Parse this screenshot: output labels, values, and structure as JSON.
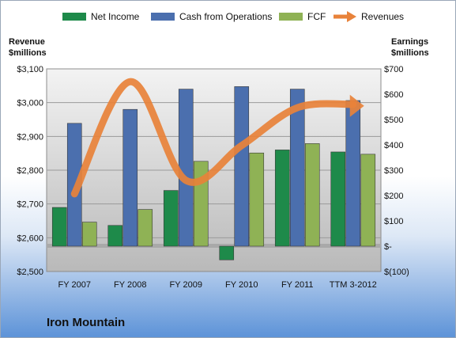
{
  "company": "Iron Mountain",
  "left_axis_title_line1": "Revenue",
  "left_axis_title_line2": "$millions",
  "right_axis_title_line1": "Earnings",
  "right_axis_title_line2": "$millions",
  "legend": [
    {
      "label": "Net Income",
      "color": "#1e8a4a",
      "kind": "bar"
    },
    {
      "label": "Cash from Operations",
      "color": "#4b6fae",
      "kind": "bar"
    },
    {
      "label": "FCF",
      "color": "#8fb255",
      "kind": "bar"
    },
    {
      "label": "Revenues",
      "color": "#e8823a",
      "kind": "arrow"
    }
  ],
  "chart_data": {
    "type": "bar",
    "categories": [
      "FY 2007",
      "FY 2008",
      "FY 2009",
      "FY 2010",
      "FY 2011",
      "TTM 3-2012"
    ],
    "series": [
      {
        "name": "Net Income",
        "axis": "right",
        "values": [
          153,
          82,
          220,
          -54,
          380,
          372
        ],
        "color": "#1e8a4a"
      },
      {
        "name": "Cash from Operations",
        "axis": "right",
        "values": [
          485,
          540,
          620,
          630,
          620,
          575
        ],
        "color": "#4b6fae"
      },
      {
        "name": "FCF",
        "axis": "right",
        "values": [
          95,
          145,
          335,
          368,
          405,
          363
        ],
        "color": "#8fb255"
      },
      {
        "name": "Revenues",
        "axis": "left",
        "type": "line",
        "values": [
          2730,
          3062,
          2770,
          2873,
          2985,
          2995
        ],
        "color": "#e8823a"
      }
    ],
    "left_axis": {
      "min": 2500,
      "max": 3100,
      "ticks": [
        "$2,500",
        "$2,600",
        "$2,700",
        "$2,800",
        "$2,900",
        "$3,000",
        "$3,100"
      ]
    },
    "right_axis": {
      "min": -100,
      "max": 700,
      "ticks": [
        "$(100)",
        "$-",
        "$100",
        "$200",
        "$300",
        "$400",
        "$500",
        "$600",
        "$700"
      ]
    },
    "grid": true
  }
}
